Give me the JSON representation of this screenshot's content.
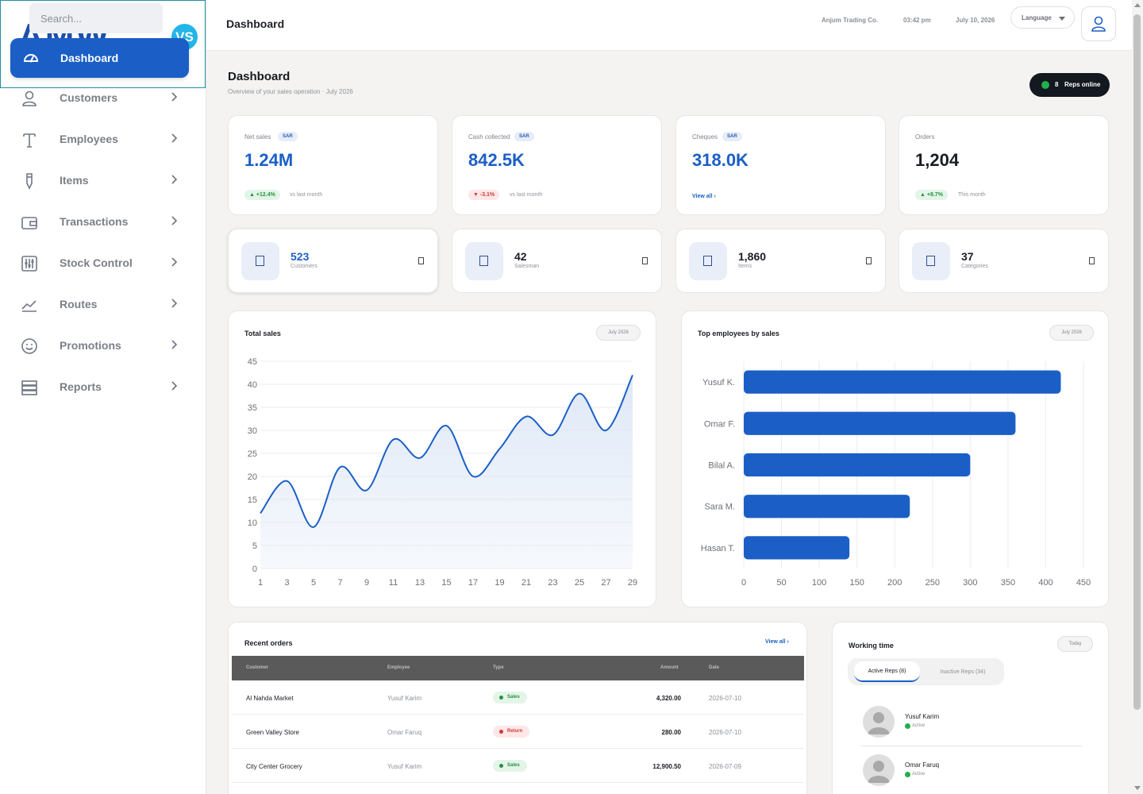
{
  "sidebar": {
    "brand_logo": "AMW",
    "brand_badge": "VS",
    "search_placeholder": "Search...",
    "active_item": "Dashboard",
    "items": [
      {
        "label": "Customers",
        "icon": "user-icon"
      },
      {
        "label": "Employees",
        "icon": "type-icon"
      },
      {
        "label": "Items",
        "icon": "pen-icon"
      },
      {
        "label": "Transactions",
        "icon": "wallet-icon"
      },
      {
        "label": "Stock Control",
        "icon": "sliders-icon"
      },
      {
        "label": "Routes",
        "icon": "trend-icon"
      },
      {
        "label": "Promotions",
        "icon": "smile-icon"
      },
      {
        "label": "Reports",
        "icon": "server-icon"
      }
    ]
  },
  "topbar": {
    "title": "Dashboard",
    "company": "Anjum Trading Co.",
    "time": "03:42 pm",
    "date": "July 10, 2026",
    "language": "Language"
  },
  "page": {
    "heading": "Dashboard",
    "subheading": "Overview of your sales operation · July 2026",
    "reps_online_count": "8",
    "reps_online_label": "Reps online"
  },
  "kpis": [
    {
      "label": "Net sales",
      "badge": "SAR",
      "value": "1.24M",
      "delta": "▲ +12.4%",
      "delta_dir": "up",
      "note": "vs last month"
    },
    {
      "label": "Cash collected",
      "badge": "SAR",
      "value": "842.5K",
      "delta": "▼ -3.1%",
      "delta_dir": "down",
      "note": "vs last month"
    },
    {
      "label": "Cheques",
      "badge": "SAR",
      "value": "318.0K",
      "link": "View all ›"
    },
    {
      "label": "Orders",
      "value": "1,204",
      "delta": "▲ +8.7%",
      "delta_dir": "up",
      "note": "This month"
    }
  ],
  "stats": [
    {
      "value": "523",
      "label": "Customers"
    },
    {
      "value": "42",
      "label": "Salesman"
    },
    {
      "value": "1,860",
      "label": "Items"
    },
    {
      "value": "37",
      "label": "Categories"
    }
  ],
  "total_sales": {
    "title": "Total sales",
    "period": "July 2026"
  },
  "top_employees": {
    "title": "Top employees by sales",
    "period": "July 2026"
  },
  "chart_data": [
    {
      "type": "area",
      "title": "Total sales",
      "x": [
        1,
        3,
        5,
        7,
        9,
        11,
        13,
        15,
        17,
        19,
        21,
        23,
        25,
        27,
        29
      ],
      "series": [
        {
          "values": [
            12,
            19,
            9,
            22,
            17,
            28,
            24,
            31,
            20,
            26,
            33,
            29,
            38,
            30,
            42
          ]
        }
      ],
      "xlim": [
        1,
        29
      ],
      "ylim": [
        0,
        45
      ],
      "yticks": [
        0,
        5,
        10,
        15,
        20,
        25,
        30,
        35,
        40,
        45
      ],
      "xticks": [
        1,
        3,
        5,
        7,
        9,
        11,
        13,
        15,
        17,
        19,
        21,
        23,
        25,
        27,
        29
      ],
      "grid": true,
      "colors": {
        "line": "#1b5fc6",
        "fill": "#dde7f6"
      }
    },
    {
      "type": "bar",
      "orientation": "horizontal",
      "title": "Top employees by sales",
      "categories": [
        "Yusuf K.",
        "Omar F.",
        "Bilal A.",
        "Sara M.",
        "Hasan T."
      ],
      "values": [
        420,
        360,
        300,
        220,
        140
      ],
      "xlim": [
        0,
        450
      ],
      "xticks": [
        0,
        50,
        100,
        150,
        200,
        250,
        300,
        350,
        400,
        450
      ],
      "grid": true,
      "colors": {
        "bar": "#1b5fc6"
      }
    }
  ],
  "recent_orders": {
    "title": "Recent orders",
    "view_all": "View all ›",
    "columns": [
      "Customer",
      "Employee",
      "Type",
      "Amount",
      "Date"
    ],
    "rows": [
      {
        "customer": "Al Nahda Market",
        "employee": "Yusuf Karim",
        "type": "Sales",
        "kind": "sales",
        "amount": "4,320.00",
        "date": "2026-07-10"
      },
      {
        "customer": "Green Valley Store",
        "employee": "Omar Faruq",
        "type": "Return",
        "kind": "ret",
        "amount": "280.00",
        "date": "2026-07-10"
      },
      {
        "customer": "City Center Grocery",
        "employee": "Yusuf Karim",
        "type": "Sales",
        "kind": "sales",
        "amount": "12,900.50",
        "date": "2026-07-09"
      }
    ]
  },
  "working_time": {
    "title": "Working time",
    "period": "Today",
    "tab_active": "Active Reps (8)",
    "tab_inactive": "Inactive Reps (34)",
    "reps": [
      {
        "name": "Yusuf Karim",
        "status": "Active"
      },
      {
        "name": "Omar Faruq",
        "status": "Active"
      }
    ]
  }
}
